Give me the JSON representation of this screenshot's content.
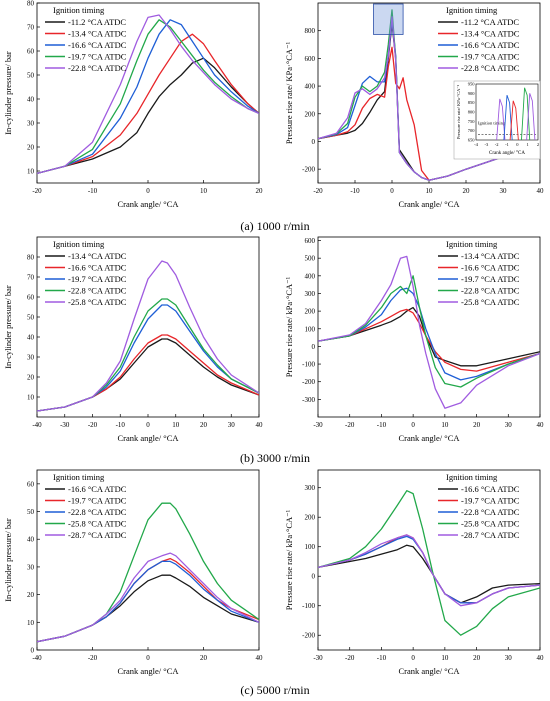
{
  "captions": [
    "(a) 1000 r/min",
    "(b) 3000 r/min",
    "(c) 5000 r/min"
  ],
  "colors": {
    "black": "#1a1a1a",
    "red": "#e8262a",
    "blue": "#1f5fd6",
    "green": "#22a84a",
    "purple": "#a05ce0"
  },
  "chart_data": [
    {
      "id": "a-pressure",
      "type": "line",
      "xlabel": "Crank angle/ °CA",
      "ylabel": "In-cylinder pressure/ bar",
      "xlim": [
        -20,
        20
      ],
      "ylim": [
        5,
        80
      ],
      "xticks": [
        -20,
        -10,
        0,
        10,
        20
      ],
      "yticks": [
        10,
        20,
        30,
        40,
        50,
        60,
        70,
        80
      ],
      "legend_title": "Ignition timing",
      "legend_position": "top-left",
      "x": [
        -20,
        -15,
        -10,
        -5,
        -2,
        0,
        2,
        4,
        6,
        8,
        10,
        12,
        15,
        18,
        20
      ],
      "series": [
        {
          "name": "-11.2 °CA ATDC",
          "color": "black",
          "values": [
            9,
            12,
            15,
            20,
            26,
            34,
            41,
            46,
            50,
            55,
            57,
            53,
            45,
            38,
            34
          ]
        },
        {
          "name": "-13.4 °CA ATDC",
          "color": "red",
          "values": [
            9,
            12,
            16,
            25,
            34,
            42,
            50,
            57,
            64,
            67,
            63,
            56,
            46,
            38,
            34
          ]
        },
        {
          "name": "-16.6 °CA ATDC",
          "color": "blue",
          "values": [
            9,
            12,
            17,
            32,
            45,
            57,
            67,
            73,
            71,
            64,
            57,
            50,
            43,
            37,
            34
          ]
        },
        {
          "name": "-19.7 °CA ATDC",
          "color": "green",
          "values": [
            9,
            12,
            19,
            38,
            56,
            67,
            73,
            70,
            64,
            58,
            52,
            47,
            41,
            36,
            34
          ]
        },
        {
          "name": "-22.8 °CA ATDC",
          "color": "purple",
          "values": [
            9,
            12,
            22,
            46,
            64,
            74,
            75,
            69,
            62,
            56,
            51,
            46,
            40,
            36,
            34
          ]
        }
      ]
    },
    {
      "id": "a-prr",
      "type": "line",
      "xlabel": "Crank angle/ °CA",
      "ylabel": "Pressure rise rate/ KPa·°CA⁻¹",
      "xlim": [
        -20,
        40
      ],
      "ylim": [
        -300,
        1000
      ],
      "xticks": [
        -20,
        -10,
        0,
        10,
        20,
        30,
        40
      ],
      "yticks": [
        -200,
        0,
        200,
        400,
        600,
        800
      ],
      "legend_title": "Ignition timing",
      "legend_position": "top-right",
      "x": [
        -20,
        -15,
        -12,
        -10,
        -8,
        -6,
        -4,
        -2,
        -1,
        0,
        1,
        2,
        3,
        4,
        6,
        8,
        10,
        15,
        20,
        30,
        40
      ],
      "series": [
        {
          "name": "-11.2 °CA ATDC",
          "color": "black",
          "values": [
            20,
            45,
            60,
            80,
            130,
            210,
            300,
            360,
            600,
            850,
            600,
            -60,
            -100,
            -140,
            -220,
            -260,
            -280,
            -250,
            -200,
            -110,
            -40
          ]
        },
        {
          "name": "-13.4 °CA ATDC",
          "color": "red",
          "values": [
            20,
            45,
            70,
            120,
            240,
            310,
            340,
            320,
            540,
            680,
            420,
            380,
            460,
            300,
            120,
            -210,
            -280,
            -250,
            -200,
            -110,
            -40
          ]
        },
        {
          "name": "-16.6 °CA ATDC",
          "color": "blue",
          "values": [
            20,
            50,
            100,
            260,
            420,
            470,
            430,
            430,
            620,
            880,
            620,
            -80,
            -120,
            -160,
            -220,
            -260,
            -280,
            -250,
            -200,
            -110,
            -40
          ]
        },
        {
          "name": "-19.7 °CA ATDC",
          "color": "green",
          "values": [
            20,
            55,
            130,
            320,
            400,
            360,
            400,
            500,
            700,
            950,
            600,
            -80,
            -120,
            -160,
            -220,
            -260,
            -280,
            -250,
            -200,
            -110,
            -40
          ]
        },
        {
          "name": "-22.8 °CA ATDC",
          "color": "purple",
          "values": [
            20,
            60,
            170,
            350,
            380,
            340,
            380,
            460,
            620,
            900,
            580,
            -80,
            -120,
            -160,
            -220,
            -260,
            -280,
            -250,
            -200,
            -110,
            -40
          ]
        }
      ],
      "inset": {
        "xlabel": "Crank angle/ °CA",
        "ylabel": "Pressure rise rate/ KPa·°CA⁻¹",
        "annotation": "Ignition timing",
        "xticks": [
          -4,
          -3,
          -2,
          -1,
          0,
          1,
          2
        ],
        "yticks": [
          650,
          700,
          750,
          800,
          850,
          900,
          950
        ]
      }
    },
    {
      "id": "b-pressure",
      "type": "line",
      "xlabel": "Crank angle/ °CA",
      "ylabel": "In-cylinder pressure/ bar",
      "xlim": [
        -40,
        40
      ],
      "ylim": [
        0,
        90
      ],
      "xticks": [
        -40,
        -30,
        -20,
        -10,
        0,
        10,
        20,
        30,
        40
      ],
      "yticks": [
        10,
        20,
        30,
        40,
        50,
        60,
        70,
        80
      ],
      "legend_title": "Ignition timing",
      "legend_position": "top-left",
      "x": [
        -40,
        -30,
        -20,
        -15,
        -10,
        -5,
        0,
        5,
        7,
        10,
        15,
        20,
        25,
        30,
        40
      ],
      "series": [
        {
          "name": "-13.4 °CA ATDC",
          "color": "black",
          "values": [
            3,
            5,
            10,
            14,
            19,
            27,
            35,
            39,
            39,
            37,
            31,
            25,
            20,
            16,
            11
          ]
        },
        {
          "name": "-16.6 °CA ATDC",
          "color": "red",
          "values": [
            3,
            5,
            10,
            14,
            20,
            29,
            37,
            41,
            41,
            39,
            33,
            27,
            21,
            17,
            11
          ]
        },
        {
          "name": "-19.7 °CA ATDC",
          "color": "blue",
          "values": [
            3,
            5,
            10,
            15,
            23,
            37,
            49,
            56,
            56,
            53,
            43,
            33,
            25,
            19,
            12
          ]
        },
        {
          "name": "-22.8 °CA ATDC",
          "color": "green",
          "values": [
            3,
            5,
            10,
            16,
            25,
            40,
            53,
            59,
            59,
            56,
            45,
            34,
            26,
            19,
            12
          ]
        },
        {
          "name": "-25.8 °CA ATDC",
          "color": "purple",
          "values": [
            3,
            5,
            10,
            17,
            28,
            49,
            69,
            78,
            77,
            71,
            55,
            40,
            29,
            21,
            12
          ]
        }
      ]
    },
    {
      "id": "b-prr",
      "type": "line",
      "xlabel": "Crank angle/ °CA",
      "ylabel": "Pressure rise rate/ kPa·°CA⁻¹",
      "xlim": [
        -30,
        40
      ],
      "ylim": [
        -400,
        620
      ],
      "xticks": [
        -30,
        -20,
        -10,
        0,
        10,
        20,
        30,
        40
      ],
      "yticks": [
        -300,
        -200,
        -100,
        0,
        100,
        200,
        300,
        400,
        500,
        600
      ],
      "legend_title": "Ignition timing",
      "legend_position": "top-right",
      "x": [
        -30,
        -20,
        -15,
        -10,
        -7,
        -4,
        -2,
        0,
        2,
        4,
        7,
        10,
        15,
        20,
        30,
        40
      ],
      "series": [
        {
          "name": "-13.4 °CA ATDC",
          "color": "black",
          "values": [
            30,
            60,
            90,
            120,
            140,
            170,
            200,
            220,
            170,
            60,
            -60,
            -80,
            -110,
            -110,
            -70,
            -30
          ]
        },
        {
          "name": "-16.6 °CA ATDC",
          "color": "red",
          "values": [
            30,
            60,
            100,
            140,
            170,
            200,
            210,
            190,
            130,
            60,
            -30,
            -90,
            -130,
            -140,
            -90,
            -40
          ]
        },
        {
          "name": "-19.7 °CA ATDC",
          "color": "blue",
          "values": [
            30,
            60,
            110,
            180,
            260,
            320,
            330,
            300,
            220,
            100,
            -40,
            -150,
            -190,
            -170,
            -100,
            -40
          ]
        },
        {
          "name": "-22.8 °CA ATDC",
          "color": "green",
          "values": [
            30,
            60,
            120,
            220,
            300,
            340,
            300,
            400,
            220,
            60,
            -120,
            -210,
            -230,
            -180,
            -100,
            -40
          ]
        },
        {
          "name": "-25.8 °CA ATDC",
          "color": "purple",
          "values": [
            30,
            65,
            130,
            260,
            350,
            500,
            510,
            340,
            120,
            -40,
            -240,
            -350,
            -320,
            -220,
            -110,
            -40
          ]
        }
      ]
    },
    {
      "id": "c-pressure",
      "type": "line",
      "xlabel": "Crank angle/ °CA",
      "ylabel": "In-cylinder pressure/ bar",
      "xlim": [
        -40,
        40
      ],
      "ylim": [
        0,
        65
      ],
      "xticks": [
        -40,
        -20,
        0,
        20,
        40
      ],
      "yticks": [
        0,
        10,
        20,
        30,
        40,
        50,
        60
      ],
      "legend_title": "Ignition timing",
      "legend_position": "top-left",
      "x": [
        -40,
        -30,
        -20,
        -15,
        -10,
        -5,
        0,
        5,
        8,
        10,
        15,
        20,
        25,
        30,
        40
      ],
      "series": [
        {
          "name": "-16.6 °CA ATDC",
          "color": "black",
          "values": [
            3,
            5,
            9,
            12,
            16,
            21,
            25,
            27,
            27,
            26,
            23,
            19,
            16,
            13,
            10
          ]
        },
        {
          "name": "-19.7 °CA ATDC",
          "color": "red",
          "values": [
            3,
            5,
            9,
            12,
            17,
            24,
            29,
            32,
            33,
            32,
            28,
            23,
            18,
            15,
            11
          ]
        },
        {
          "name": "-22.8 °CA ATDC",
          "color": "blue",
          "values": [
            3,
            5,
            9,
            12,
            17,
            24,
            29,
            32,
            32,
            31,
            27,
            22,
            18,
            14,
            10
          ]
        },
        {
          "name": "-25.8 °CA ATDC",
          "color": "green",
          "values": [
            3,
            5,
            9,
            13,
            21,
            34,
            47,
            53,
            53,
            51,
            42,
            32,
            24,
            18,
            11
          ]
        },
        {
          "name": "-28.7 °CA ATDC",
          "color": "purple",
          "values": [
            3,
            5,
            9,
            13,
            18,
            26,
            32,
            34,
            35,
            34,
            29,
            24,
            19,
            15,
            10
          ]
        }
      ]
    },
    {
      "id": "c-prr",
      "type": "line",
      "xlabel": "Crank angle/ °CA",
      "ylabel": "Pressure rise rate/ kPa·°CA⁻¹",
      "xlim": [
        -30,
        40
      ],
      "ylim": [
        -250,
        360
      ],
      "xticks": [
        -30,
        -20,
        -10,
        0,
        10,
        20,
        30,
        40
      ],
      "yticks": [
        -200,
        -100,
        0,
        100,
        200,
        300
      ],
      "legend_title": "Ignition timing",
      "legend_position": "top-right",
      "x": [
        -30,
        -20,
        -15,
        -10,
        -5,
        -2,
        0,
        3,
        6,
        10,
        15,
        20,
        25,
        30,
        40
      ],
      "series": [
        {
          "name": "-16.6 °CA ATDC",
          "color": "black",
          "values": [
            30,
            50,
            60,
            75,
            90,
            105,
            100,
            60,
            10,
            -60,
            -90,
            -70,
            -40,
            -30,
            -25
          ]
        },
        {
          "name": "-19.7 °CA ATDC",
          "color": "red",
          "values": [
            30,
            55,
            75,
            100,
            130,
            140,
            130,
            80,
            10,
            -60,
            -90,
            -90,
            -60,
            -40,
            -30
          ]
        },
        {
          "name": "-22.8 °CA ATDC",
          "color": "blue",
          "values": [
            30,
            55,
            75,
            100,
            125,
            135,
            125,
            80,
            10,
            -60,
            -90,
            -90,
            -60,
            -40,
            -30
          ]
        },
        {
          "name": "-25.8 °CA ATDC",
          "color": "green",
          "values": [
            30,
            60,
            100,
            160,
            240,
            290,
            280,
            160,
            20,
            -150,
            -200,
            -170,
            -110,
            -70,
            -40
          ]
        },
        {
          "name": "-28.7 °CA ATDC",
          "color": "purple",
          "values": [
            30,
            55,
            80,
            110,
            130,
            140,
            130,
            80,
            10,
            -60,
            -100,
            -90,
            -60,
            -40,
            -30
          ]
        }
      ]
    }
  ]
}
